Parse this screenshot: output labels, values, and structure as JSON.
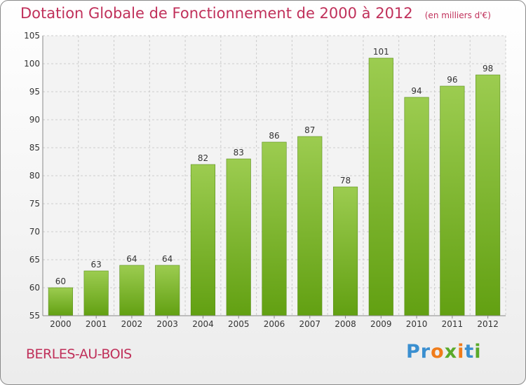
{
  "chart_data": {
    "type": "bar",
    "title": "Dotation Globale de Fonctionnement de 2000 à 2012",
    "subtitle": "(en milliers d'€)",
    "categories": [
      "2000",
      "2001",
      "2002",
      "2003",
      "2004",
      "2005",
      "2006",
      "2007",
      "2008",
      "2009",
      "2010",
      "2011",
      "2012"
    ],
    "values": [
      60,
      63,
      64,
      64,
      82,
      83,
      86,
      87,
      78,
      101,
      94,
      96,
      98
    ],
    "ylim": [
      55,
      105
    ],
    "yticks": [
      55,
      60,
      65,
      70,
      75,
      80,
      85,
      90,
      95,
      100,
      105
    ],
    "grid": true,
    "bar_color_top": "#9ccc50",
    "bar_color_bottom": "#62a012"
  },
  "footer": {
    "commune": "BERLES-AU-BOIS",
    "logo_text": "Proxiti",
    "logo_colors": [
      "#3a8fd0",
      "#3a8fd0",
      "#f07c1a",
      "#5aaa2a",
      "#f07c1a",
      "#3a8fd0",
      "#5aaa2a"
    ]
  },
  "colors": {
    "title": "#c0305a",
    "grid": "#cccccc",
    "axis_text": "#333333"
  }
}
